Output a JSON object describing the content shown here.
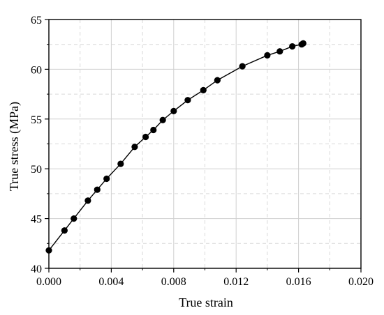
{
  "chart_data": {
    "type": "line",
    "title": "",
    "xlabel": "True strain",
    "ylabel": "True stress (MPa)",
    "xlim": [
      0.0,
      0.02
    ],
    "ylim": [
      40,
      65
    ],
    "x_major_ticks": [
      0.0,
      0.004,
      0.008,
      0.012,
      0.016,
      0.02
    ],
    "x_tick_labels": [
      "0.000",
      "0.004",
      "0.008",
      "0.012",
      "0.016",
      "0.020"
    ],
    "y_major_ticks": [
      40,
      45,
      50,
      55,
      60,
      65
    ],
    "y_tick_labels": [
      "40",
      "45",
      "50",
      "55",
      "60",
      "65"
    ],
    "x_minor_gridlines": [
      0.002,
      0.006,
      0.01,
      0.014,
      0.018
    ],
    "y_minor_gridlines": [
      42.5,
      47.5,
      52.5,
      57.5,
      62.5
    ],
    "grid": true,
    "legend": "none",
    "series": [
      {
        "marker": "filled-circle",
        "color": "#000000",
        "points": [
          {
            "x": 0.0,
            "y": 41.8
          },
          {
            "x": 0.001,
            "y": 43.8
          },
          {
            "x": 0.0016,
            "y": 45.0
          },
          {
            "x": 0.0025,
            "y": 46.8
          },
          {
            "x": 0.0031,
            "y": 47.9
          },
          {
            "x": 0.0037,
            "y": 49.0
          },
          {
            "x": 0.0046,
            "y": 50.5
          },
          {
            "x": 0.0055,
            "y": 52.2
          },
          {
            "x": 0.0062,
            "y": 53.2
          },
          {
            "x": 0.0067,
            "y": 53.9
          },
          {
            "x": 0.0073,
            "y": 54.9
          },
          {
            "x": 0.008,
            "y": 55.8
          },
          {
            "x": 0.0089,
            "y": 56.9
          },
          {
            "x": 0.0099,
            "y": 57.9
          },
          {
            "x": 0.0108,
            "y": 58.9
          },
          {
            "x": 0.0124,
            "y": 60.3
          },
          {
            "x": 0.014,
            "y": 61.4
          },
          {
            "x": 0.0148,
            "y": 61.8
          },
          {
            "x": 0.0156,
            "y": 62.3
          },
          {
            "x": 0.0162,
            "y": 62.5
          },
          {
            "x": 0.0163,
            "y": 62.6
          }
        ]
      }
    ]
  }
}
